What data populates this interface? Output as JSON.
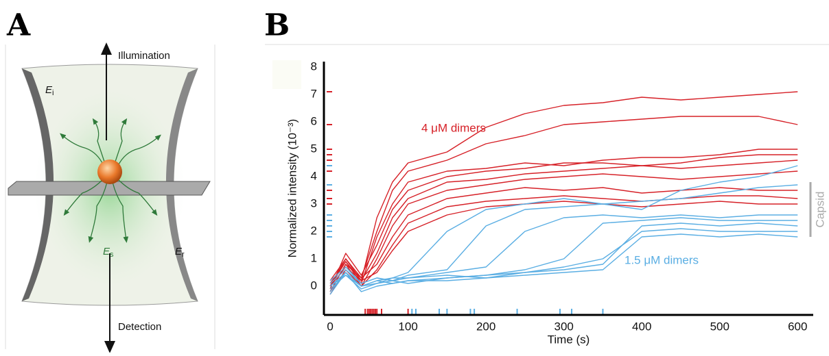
{
  "panel_a": {
    "label": "A",
    "illumination": "Illumination",
    "detection": "Detection",
    "fields": [
      {
        "symbol": "E",
        "subscript": "i"
      },
      {
        "symbol": "E",
        "subscript": "s"
      },
      {
        "symbol": "E",
        "subscript": "r"
      }
    ]
  },
  "chart_data": {
    "type": "line",
    "panel_label": "B",
    "x_label": "Time (s)",
    "y_label": "Normalized intensity (10⁻³)",
    "annotations": [
      "4 μM dimers",
      "1.5 μM dimers",
      "Capsid"
    ],
    "capsid_range": [
      1.8,
      3.8
    ],
    "x": [
      0,
      20,
      40,
      60,
      80,
      100,
      150,
      200,
      250,
      300,
      350,
      400,
      450,
      500,
      550,
      600
    ],
    "xlim": [
      -8,
      620
    ],
    "ylim": [
      -1.05,
      8.2
    ],
    "xticks": [
      0,
      100,
      200,
      300,
      400,
      500,
      600
    ],
    "yticks": [
      0,
      1,
      2,
      3,
      4,
      5,
      6,
      7,
      8
    ],
    "series": [
      {
        "color": "#d62027",
        "values": [
          0,
          1,
          0.2,
          2.5,
          3.8,
          4.5,
          4.9,
          5.8,
          6.3,
          6.6,
          6.7,
          6.9,
          6.8,
          6.9,
          7.0,
          7.1
        ]
      },
      {
        "color": "#d62027",
        "values": [
          -0.2,
          0.8,
          0.3,
          2.0,
          3.5,
          4.2,
          4.6,
          5.2,
          5.5,
          5.9,
          6.0,
          6.1,
          6.2,
          6.2,
          6.2,
          5.9
        ]
      },
      {
        "color": "#d62027",
        "values": [
          0.1,
          0.9,
          0.1,
          1.8,
          3.0,
          3.8,
          4.2,
          4.3,
          4.5,
          4.4,
          4.6,
          4.7,
          4.7,
          4.8,
          5.0,
          5.0
        ]
      },
      {
        "color": "#d62027",
        "values": [
          -0.1,
          1.2,
          0.4,
          1.5,
          2.8,
          3.5,
          4.0,
          4.2,
          4.3,
          4.5,
          4.5,
          4.4,
          4.5,
          4.7,
          4.8,
          4.8
        ]
      },
      {
        "color": "#d62027",
        "values": [
          0,
          0.7,
          0.2,
          1.2,
          2.5,
          3.2,
          3.8,
          3.9,
          4.1,
          4.2,
          4.3,
          4.4,
          4.3,
          4.4,
          4.5,
          4.6
        ]
      },
      {
        "color": "#d62027",
        "values": [
          -0.3,
          0.6,
          0,
          1.0,
          2.2,
          3.0,
          3.5,
          3.7,
          3.9,
          4.0,
          4.1,
          4.0,
          3.9,
          4.0,
          4.1,
          4.2
        ]
      },
      {
        "color": "#d62027",
        "values": [
          0.2,
          1.0,
          0.3,
          0.8,
          1.8,
          2.6,
          3.2,
          3.4,
          3.6,
          3.5,
          3.6,
          3.4,
          3.5,
          3.6,
          3.5,
          3.5
        ]
      },
      {
        "color": "#d62027",
        "values": [
          -0.2,
          0.8,
          0,
          0.6,
          1.5,
          2.3,
          2.9,
          3.1,
          3.2,
          3.3,
          3.2,
          3.1,
          3.2,
          3.3,
          3.3,
          3.2
        ]
      },
      {
        "color": "#d62027",
        "values": [
          0,
          0.9,
          0.2,
          0.5,
          1.3,
          2.0,
          2.6,
          2.9,
          3.0,
          3.1,
          3.0,
          2.9,
          3.0,
          3.1,
          3.0,
          3.0
        ]
      },
      {
        "color": "#5aaee3",
        "values": [
          -0.2,
          0.5,
          0,
          0.2,
          0.3,
          0.5,
          2.0,
          2.8,
          3.0,
          3.2,
          3.0,
          2.8,
          3.5,
          3.8,
          4.0,
          4.4
        ]
      },
      {
        "color": "#5aaee3",
        "values": [
          0.1,
          0.6,
          0.1,
          0.3,
          0.2,
          0.4,
          0.6,
          2.2,
          2.8,
          2.9,
          3.0,
          3.1,
          3.2,
          3.4,
          3.6,
          3.7
        ]
      },
      {
        "color": "#5aaee3",
        "values": [
          0,
          0.4,
          -0.1,
          0.1,
          0.3,
          0.3,
          0.5,
          0.7,
          2.0,
          2.5,
          2.6,
          2.5,
          2.6,
          2.5,
          2.6,
          2.6
        ]
      },
      {
        "color": "#5aaee3",
        "values": [
          -0.3,
          0.5,
          0,
          0.2,
          0.1,
          0.2,
          0.3,
          0.4,
          0.6,
          1.0,
          2.3,
          2.4,
          2.5,
          2.4,
          2.4,
          2.4
        ]
      },
      {
        "color": "#5aaee3",
        "values": [
          0.2,
          0.7,
          0.1,
          0.3,
          0.2,
          0.3,
          0.4,
          0.3,
          0.5,
          0.6,
          0.8,
          2.2,
          2.3,
          2.2,
          2.3,
          2.2
        ]
      },
      {
        "color": "#5aaee3",
        "values": [
          -0.1,
          0.4,
          0,
          0.1,
          0.2,
          0.1,
          0.3,
          0.4,
          0.5,
          0.7,
          1.0,
          2.0,
          2.1,
          2.0,
          2.0,
          2.0
        ]
      },
      {
        "color": "#5aaee3",
        "values": [
          0,
          0.5,
          -0.2,
          0,
          0.1,
          0.2,
          0.2,
          0.3,
          0.4,
          0.5,
          0.6,
          1.8,
          1.9,
          1.8,
          1.9,
          1.8
        ]
      }
    ],
    "rug_red": {
      "color": "#d62027",
      "values": [
        45,
        48,
        50,
        52,
        54,
        56,
        58,
        60,
        66,
        100
      ]
    },
    "rug_blue": {
      "color": "#5aaee3",
      "values": [
        105,
        110,
        140,
        150,
        180,
        185,
        240,
        295,
        310,
        350
      ]
    }
  }
}
